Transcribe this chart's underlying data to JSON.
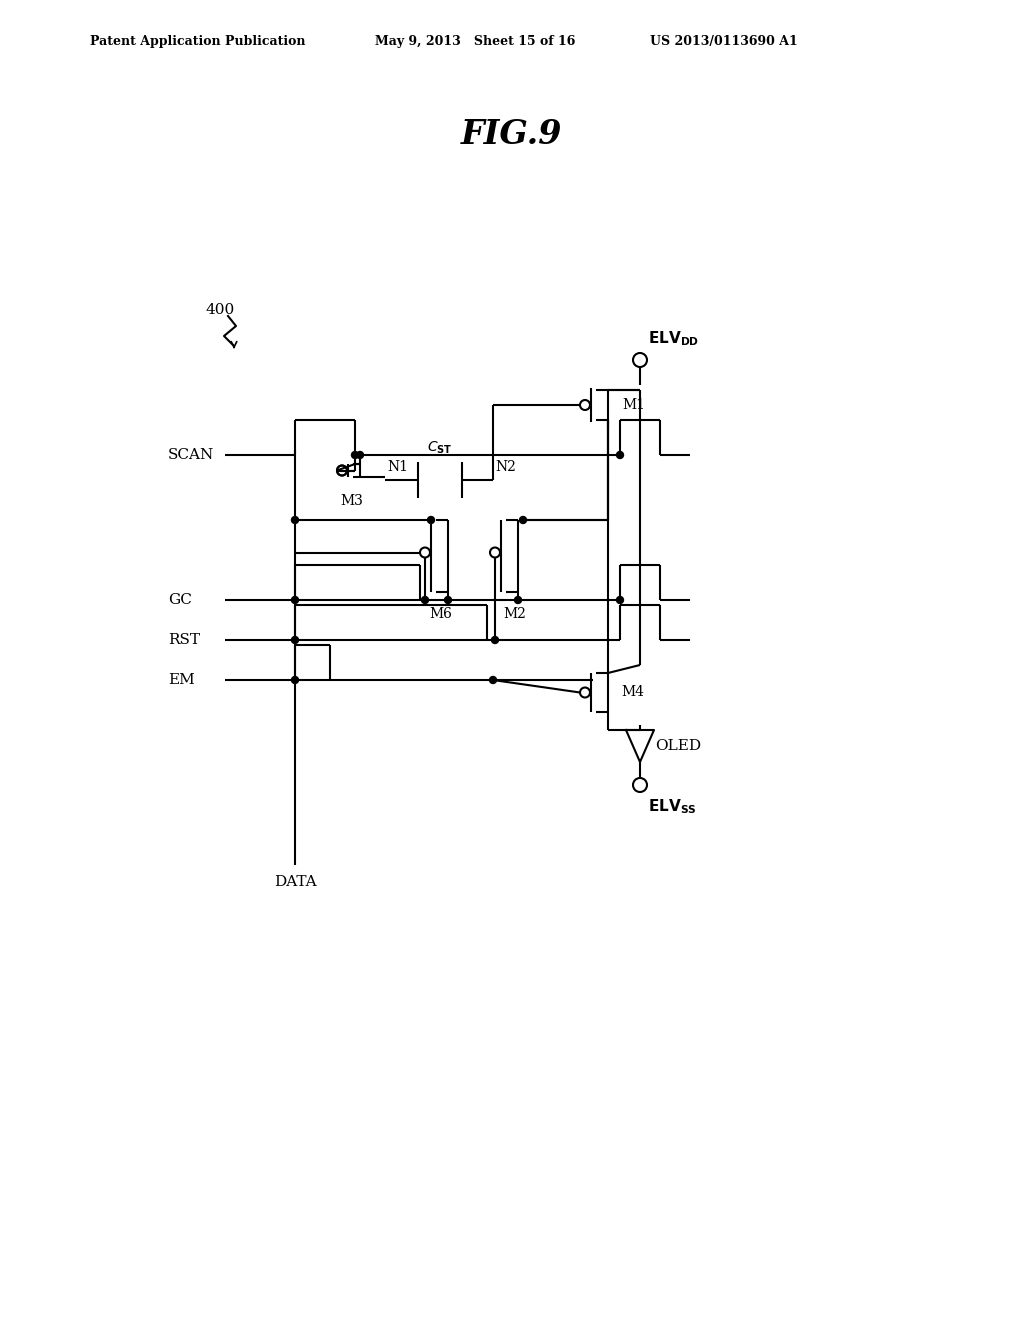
{
  "title": "FIG.9",
  "header_left": "Patent Application Publication",
  "header_mid": "May 9, 2013   Sheet 15 of 16",
  "header_right": "US 2013/0113690 A1",
  "bg_color": "#ffffff",
  "line_color": "#000000",
  "label_400": "400",
  "label_ELVDD": "ELV",
  "label_ELVDD_sub": "DD",
  "label_SCAN": "SCAN",
  "label_GC": "GC",
  "label_RST": "RST",
  "label_EM": "EM",
  "label_DATA": "DATA",
  "label_ELVSS": "ELV",
  "label_ELVSS_sub": "SS",
  "label_OLED": "OLED",
  "label_M1": "M1",
  "label_M2": "M2",
  "label_M3": "M3",
  "label_M4": "M4",
  "label_M6": "M6",
  "label_N1": "N1",
  "label_N2": "N2",
  "label_CST": "C",
  "label_CST_sub": "ST"
}
